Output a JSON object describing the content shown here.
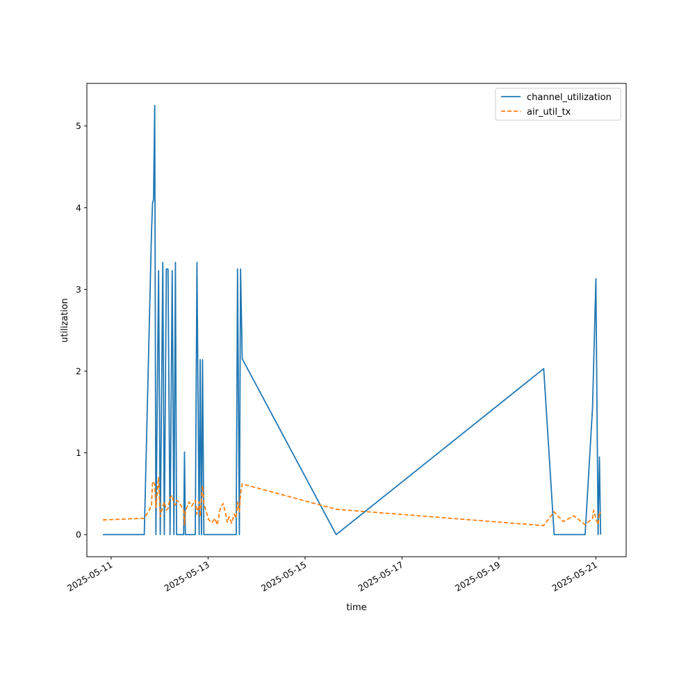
{
  "chart_data": {
    "type": "line",
    "title": "",
    "xlabel": "time",
    "ylabel": "utilization",
    "x_axis_type": "date",
    "xlim": [
      "2025-05-10T12:00",
      "2025-05-21T15:00"
    ],
    "ylim": [
      -0.27,
      5.52
    ],
    "xticks": [
      "2025-05-11",
      "2025-05-13",
      "2025-05-15",
      "2025-05-17",
      "2025-05-19",
      "2025-05-21"
    ],
    "yticks": [
      0,
      1,
      2,
      3,
      4,
      5
    ],
    "grid": false,
    "legend_position": "top-right",
    "series": [
      {
        "name": "channel_utilization",
        "color": "#1f77b4",
        "dash": "solid",
        "points": [
          [
            "2025-05-10T19:55",
            0
          ],
          [
            "2025-05-11T16:25",
            0
          ],
          [
            "2025-05-11T20:00",
            3.7
          ],
          [
            "2025-05-11T20:30",
            4.05
          ],
          [
            "2025-05-11T21:00",
            4.1
          ],
          [
            "2025-05-11T21:35",
            5.25
          ],
          [
            "2025-05-11T22:10",
            0
          ],
          [
            "2025-05-11T23:30",
            3.23
          ],
          [
            "2025-05-12T00:20",
            0
          ],
          [
            "2025-05-12T01:35",
            3.33
          ],
          [
            "2025-05-12T02:20",
            0
          ],
          [
            "2025-05-12T03:20",
            3.25
          ],
          [
            "2025-05-12T04:10",
            3.25
          ],
          [
            "2025-05-12T05:10",
            0
          ],
          [
            "2025-05-12T06:15",
            3.23
          ],
          [
            "2025-05-12T07:05",
            0
          ],
          [
            "2025-05-12T07:50",
            3.33
          ],
          [
            "2025-05-12T08:25",
            0
          ],
          [
            "2025-05-12T11:55",
            0
          ],
          [
            "2025-05-12T12:20",
            1.01
          ],
          [
            "2025-05-12T12:45",
            0
          ],
          [
            "2025-05-12T17:40",
            0
          ],
          [
            "2025-05-12T18:30",
            3.33
          ],
          [
            "2025-05-12T19:35",
            0
          ],
          [
            "2025-05-12T20:05",
            2.14
          ],
          [
            "2025-05-12T20:45",
            0
          ],
          [
            "2025-05-12T21:15",
            2.14
          ],
          [
            "2025-05-12T21:55",
            0
          ],
          [
            "2025-05-13T13:55",
            0
          ],
          [
            "2025-05-13T14:35",
            3.25
          ],
          [
            "2025-05-13T15:30",
            0
          ],
          [
            "2025-05-13T16:05",
            3.25
          ],
          [
            "2025-05-13T16:55",
            2.15
          ],
          [
            "2025-05-15T15:25",
            0
          ],
          [
            "2025-05-19T22:10",
            2.03
          ],
          [
            "2025-05-20T03:20",
            0
          ],
          [
            "2025-05-20T18:40",
            0
          ],
          [
            "2025-05-20T22:20",
            1.55
          ],
          [
            "2025-05-21T00:00",
            3.13
          ],
          [
            "2025-05-21T01:05",
            0
          ],
          [
            "2025-05-21T01:45",
            0.95
          ],
          [
            "2025-05-21T02:20",
            0
          ]
        ]
      },
      {
        "name": "air_util_tx",
        "color": "#ff7f0e",
        "dash": "dashed",
        "points": [
          [
            "2025-05-10T19:55",
            0.18
          ],
          [
            "2025-05-11T16:25",
            0.2
          ],
          [
            "2025-05-11T20:00",
            0.35
          ],
          [
            "2025-05-11T20:30",
            0.65
          ],
          [
            "2025-05-11T21:35",
            0.62
          ],
          [
            "2025-05-11T22:10",
            0.33
          ],
          [
            "2025-05-11T23:30",
            0.7
          ],
          [
            "2025-05-12T00:20",
            0.22
          ],
          [
            "2025-05-12T01:35",
            0.35
          ],
          [
            "2025-05-12T02:20",
            0.4
          ],
          [
            "2025-05-12T03:20",
            0.3
          ],
          [
            "2025-05-12T04:10",
            0.32
          ],
          [
            "2025-05-12T05:10",
            0.45
          ],
          [
            "2025-05-12T06:15",
            0.48
          ],
          [
            "2025-05-12T07:05",
            0.38
          ],
          [
            "2025-05-12T07:50",
            0.36
          ],
          [
            "2025-05-12T08:25",
            0.42
          ],
          [
            "2025-05-12T09:30",
            0.4
          ],
          [
            "2025-05-12T11:55",
            0.3
          ],
          [
            "2025-05-12T12:20",
            0.12
          ],
          [
            "2025-05-12T12:45",
            0.28
          ],
          [
            "2025-05-12T14:30",
            0.4
          ],
          [
            "2025-05-12T15:55",
            0.35
          ],
          [
            "2025-05-12T17:40",
            0.42
          ],
          [
            "2025-05-12T18:30",
            0.25
          ],
          [
            "2025-05-12T19:35",
            0.4
          ],
          [
            "2025-05-12T20:05",
            0.22
          ],
          [
            "2025-05-12T21:15",
            0.6
          ],
          [
            "2025-05-12T21:55",
            0.38
          ],
          [
            "2025-05-13T00:20",
            0.18
          ],
          [
            "2025-05-13T02:05",
            0.15
          ],
          [
            "2025-05-13T03:20",
            0.2
          ],
          [
            "2025-05-13T04:35",
            0.12
          ],
          [
            "2025-05-13T05:50",
            0.3
          ],
          [
            "2025-05-13T06:40",
            0.35
          ],
          [
            "2025-05-13T07:30",
            0.38
          ],
          [
            "2025-05-13T08:45",
            0.25
          ],
          [
            "2025-05-13T09:35",
            0.15
          ],
          [
            "2025-05-13T10:25",
            0.22
          ],
          [
            "2025-05-13T11:40",
            0.14
          ],
          [
            "2025-05-13T12:55",
            0.25
          ],
          [
            "2025-05-13T13:55",
            0.2
          ],
          [
            "2025-05-13T14:35",
            0.4
          ],
          [
            "2025-05-13T15:30",
            0.28
          ],
          [
            "2025-05-13T16:05",
            0.5
          ],
          [
            "2025-05-13T16:55",
            0.62
          ],
          [
            "2025-05-15T15:25",
            0.31
          ],
          [
            "2025-05-19T22:10",
            0.11
          ],
          [
            "2025-05-20T03:20",
            0.28
          ],
          [
            "2025-05-20T07:45",
            0.16
          ],
          [
            "2025-05-20T13:05",
            0.23
          ],
          [
            "2025-05-20T18:40",
            0.12
          ],
          [
            "2025-05-20T22:20",
            0.2
          ],
          [
            "2025-05-20T22:55",
            0.3
          ],
          [
            "2025-05-21T00:00",
            0.2
          ],
          [
            "2025-05-21T01:05",
            0.12
          ],
          [
            "2025-05-21T01:45",
            0.28
          ],
          [
            "2025-05-21T02:20",
            0.26
          ]
        ]
      }
    ]
  }
}
